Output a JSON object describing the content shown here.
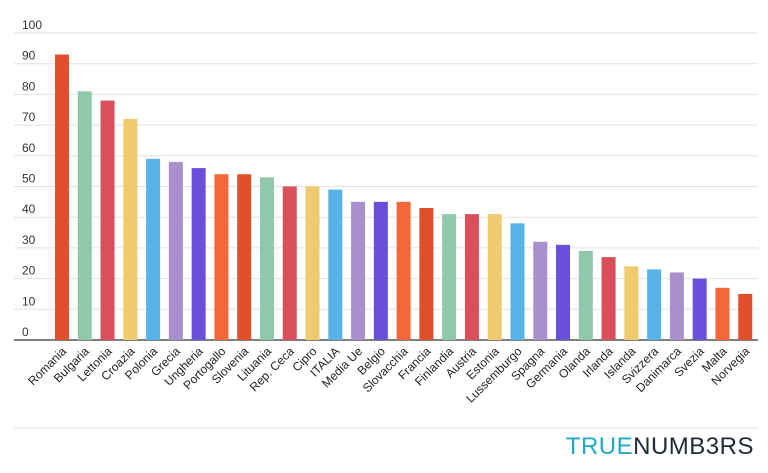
{
  "chart_data": {
    "type": "bar",
    "categories": [
      "Romania",
      "Bulgaria",
      "Lettonia",
      "Croazia",
      "Polonia",
      "Grecia",
      "Ungheria",
      "Portogallo",
      "Slovenia",
      "Lituania",
      "Rep. Ceca",
      "Cipro",
      "ITALIA",
      "Media Ue",
      "Belgio",
      "Slovacchia",
      "Francia",
      "Finlandia",
      "Austria",
      "Estonia",
      "Lussemburgo",
      "Spagna",
      "Germania",
      "Olanda",
      "Irlanda",
      "Islanda",
      "Svizzera",
      "Danimarca",
      "Svezia",
      "Malta",
      "Norvegia"
    ],
    "values": [
      93,
      81,
      78,
      72,
      59,
      58,
      56,
      54,
      54,
      53,
      50,
      50,
      49,
      45,
      45,
      45,
      43,
      41,
      41,
      41,
      38,
      32,
      31,
      29,
      27,
      24,
      23,
      22,
      20,
      17,
      15
    ],
    "colors": [
      "#e0502a",
      "#8fc9a9",
      "#db4f5a",
      "#f0ca6e",
      "#58b3e8",
      "#a98fcc",
      "#6a4fdb",
      "#f4673a",
      "#e0502a",
      "#8fc9a9",
      "#db4f5a",
      "#f0ca6e",
      "#58b3e8",
      "#a98fcc",
      "#6a4fdb",
      "#f4673a",
      "#e0502a",
      "#8fc9a9",
      "#db4f5a",
      "#f0ca6e",
      "#58b3e8",
      "#a98fcc",
      "#6a4fdb",
      "#8fc9a9",
      "#db4f5a",
      "#f0ca6e",
      "#58b3e8",
      "#a98fcc",
      "#6a4fdb",
      "#f4673a",
      "#e0502a"
    ],
    "yticks": [
      0,
      10,
      20,
      30,
      40,
      50,
      60,
      70,
      80,
      90,
      100
    ],
    "ylim": [
      0,
      100
    ],
    "grid": true,
    "title": "",
    "xlabel": "",
    "ylabel": ""
  },
  "logo": {
    "part1": "TRUE",
    "part2": "NUMB3RS"
  }
}
